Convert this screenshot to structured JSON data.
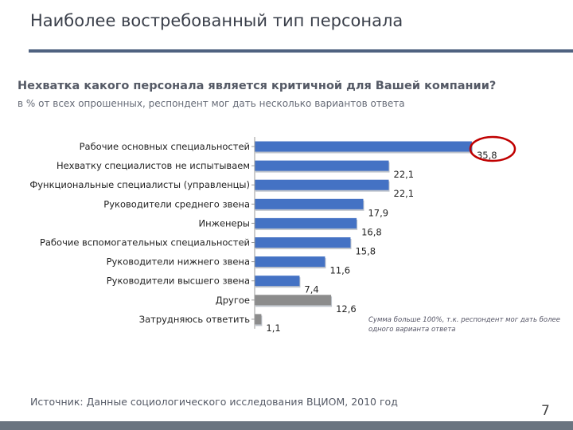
{
  "slide": {
    "title": "Наиболее востребованный тип персонала",
    "page_number": "7",
    "source": "Источник: Данные социологического исследования ВЦИОМ, 2010 год",
    "note": "Сумма больше 100%, т.к. респондент мог дать более одного варианта ответа"
  },
  "colors": {
    "bar_primary": "#4472c4",
    "bar_secondary": "#8c8c8c",
    "highlight_circle": "#c00000",
    "title_rule": "#4f6280"
  },
  "chart_data": {
    "type": "bar",
    "orientation": "horizontal",
    "title": "Нехватка какого персонала является критичной для Вашей компании?",
    "subtitle": "в % от всех опрошенных, респондент мог дать несколько вариантов ответа",
    "xlabel": "",
    "ylabel": "",
    "xlim": [
      0,
      40
    ],
    "grid": false,
    "categories": [
      "Рабочие основных специальностей",
      "Нехватку специалистов не испытываем",
      "Функциональные специалисты (управленцы)",
      "Руководители среднего звена",
      "Инженеры",
      "Рабочие вспомогательных специальностей",
      "Руководители нижнего звена",
      "Руководители высшего звена",
      "Другое",
      "Затрудняюсь ответить"
    ],
    "values": [
      35.8,
      22.1,
      22.1,
      17.9,
      16.8,
      15.8,
      11.6,
      7.4,
      12.6,
      1.1
    ],
    "value_labels": [
      "35,8",
      "22,1",
      "22,1",
      "17,9",
      "16,8",
      "15,8",
      "11,6",
      "7,4",
      "12,6",
      "1,1"
    ],
    "secondary_categories": [
      "Другое",
      "Затрудняюсь ответить"
    ],
    "highlighted_category": "Рабочие основных специальностей"
  }
}
